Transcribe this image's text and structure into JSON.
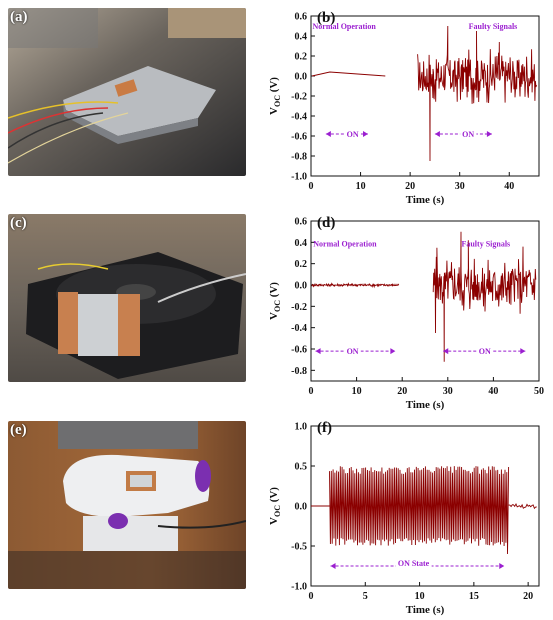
{
  "photos": [
    {
      "label": "(a)",
      "subject": "hard-disk-drive"
    },
    {
      "label": "(c)",
      "subject": "cooling-fan"
    },
    {
      "label": "(e)",
      "subject": "sewing-machine"
    }
  ],
  "colors": {
    "signal": "#8b0000",
    "annotation": "#9b1fd0",
    "axis": "#111111"
  },
  "chart_data": [
    {
      "id": "b",
      "type": "line",
      "panel_label": "(b)",
      "xlabel": "Time (s)",
      "ylabel_main": "V",
      "ylabel_sub": "OC",
      "ylabel_unit": " (V)",
      "xlim": [
        0,
        46
      ],
      "ylim": [
        -1.0,
        0.6
      ],
      "xticks": [
        0,
        10,
        20,
        30,
        40
      ],
      "yticks": [
        -1.0,
        -0.8,
        -0.6,
        -0.4,
        -0.2,
        0.0,
        0.2,
        0.4,
        0.6
      ],
      "tick_decimals": 1,
      "annotations": [
        {
          "text": "Normal Operation",
          "x": 0.3,
          "y": 0.5
        },
        {
          "text": "Faulty Signals",
          "x": 31.8,
          "y": 0.5
        },
        {
          "text": "ON",
          "x": 7.2,
          "y": -0.58
        },
        {
          "text": "ON",
          "x": 30.5,
          "y": -0.58
        }
      ],
      "arrows": [
        {
          "x1": 3.0,
          "x2": 11.5,
          "y": -0.58
        },
        {
          "x1": 25.0,
          "x2": 36.5,
          "y": -0.58
        }
      ],
      "segments": [
        {
          "x_start": 0.2,
          "x_end": 15.0,
          "amplitude": 0.0,
          "spikes": [
            {
              "x": 3.8,
              "y": 0.04
            }
          ]
        },
        {
          "x_start": 21.5,
          "x_end": 45.5,
          "amplitude": 0.28,
          "spikes": [
            {
              "x": 24.0,
              "y": -0.85
            },
            {
              "x": 27.6,
              "y": 0.5
            },
            {
              "x": 33.4,
              "y": 0.45
            },
            {
              "x": 38.0,
              "y": 0.34
            },
            {
              "x": 24.6,
              "y": -0.22
            }
          ]
        }
      ]
    },
    {
      "id": "d",
      "type": "line",
      "panel_label": "(d)",
      "xlabel": "Time (s)",
      "ylabel_main": "V",
      "ylabel_sub": "OC",
      "ylabel_unit": " (V)",
      "xlim": [
        0,
        50
      ],
      "ylim": [
        -0.9,
        0.6
      ],
      "xticks": [
        0,
        10,
        20,
        30,
        40,
        50
      ],
      "yticks": [
        -0.8,
        -0.6,
        -0.4,
        -0.2,
        0.0,
        0.2,
        0.4,
        0.6
      ],
      "tick_decimals": 1,
      "annotations": [
        {
          "text": "Normal Operation",
          "x": 0.5,
          "y": 0.39
        },
        {
          "text": "Faulty Signals",
          "x": 33.0,
          "y": 0.39
        },
        {
          "text": "ON",
          "x": 7.8,
          "y": -0.62
        },
        {
          "text": "ON",
          "x": 36.8,
          "y": -0.62
        }
      ],
      "arrows": [
        {
          "x1": 1.0,
          "x2": 18.5,
          "y": -0.62
        },
        {
          "x1": 29.0,
          "x2": 47.0,
          "y": -0.62
        }
      ],
      "segments": [
        {
          "x_start": 0.2,
          "x_end": 19.3,
          "amplitude": 0.015,
          "spikes": []
        },
        {
          "x_start": 26.8,
          "x_end": 49.3,
          "amplitude": 0.27,
          "spikes": [
            {
              "x": 29.2,
              "y": -0.72
            },
            {
              "x": 27.6,
              "y": 0.35
            },
            {
              "x": 32.9,
              "y": 0.5
            },
            {
              "x": 34.5,
              "y": 0.42
            },
            {
              "x": 46.5,
              "y": 0.36
            },
            {
              "x": 27.3,
              "y": -0.45
            }
          ]
        }
      ]
    },
    {
      "id": "f",
      "type": "line",
      "panel_label": "(f)",
      "xlabel": "Time (s)",
      "ylabel_main": "V",
      "ylabel_sub": "OC",
      "ylabel_unit": " (V)",
      "xlim": [
        0,
        21
      ],
      "ylim": [
        -1.0,
        1.0
      ],
      "xticks": [
        0,
        5,
        10,
        15,
        20
      ],
      "yticks": [
        -1.0,
        -0.5,
        0.0,
        0.5,
        1.0
      ],
      "tick_decimals": 1,
      "annotations": [
        {
          "text": "ON State",
          "x": 8.0,
          "y": -0.71
        }
      ],
      "arrows": [
        {
          "x1": 1.8,
          "x2": 17.8,
          "y": -0.75
        }
      ],
      "segments": [
        {
          "x_start": 0.0,
          "x_end": 1.7,
          "amplitude": 0.0,
          "spikes": []
        },
        {
          "x_start": 1.7,
          "x_end": 18.2,
          "amplitude": 0.5,
          "periodic": true,
          "spikes": [
            {
              "x": 18.1,
              "y": -0.6
            }
          ]
        },
        {
          "x_start": 18.2,
          "x_end": 20.8,
          "amplitude": 0.03,
          "spikes": []
        }
      ]
    }
  ]
}
